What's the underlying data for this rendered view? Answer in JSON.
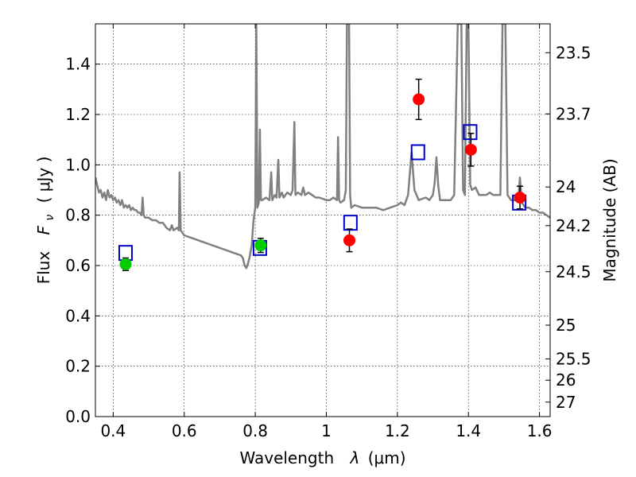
{
  "chart_data": {
    "type": "scatter",
    "xlabel_text": "Wavelength",
    "xlabel_symbol": "λ",
    "xlabel_unit": "(μm)",
    "ylabel_text": "Flux",
    "ylabel_symbol": "F",
    "ylabel_subscript": "ν",
    "ylabel_unit": "( μJy )",
    "y2label": "Magnitude (AB)",
    "xlim": [
      0.35,
      1.63
    ],
    "ylim": [
      0.0,
      1.56
    ],
    "grid": true,
    "x_ticks": [
      0.4,
      0.6,
      0.8,
      1.0,
      1.2,
      1.4,
      1.6
    ],
    "x_tick_labels": [
      "0.4",
      "0.6",
      "0.8",
      "1",
      "1.2",
      "1.4",
      "1.6"
    ],
    "y_ticks": [
      0.0,
      0.2,
      0.4,
      0.6,
      0.8,
      1.0,
      1.2,
      1.4
    ],
    "y_tick_labels": [
      "0.0",
      "0.2",
      "0.4",
      "0.6",
      "0.8",
      "1.0",
      "1.2",
      "1.4"
    ],
    "y2_ticks": [
      {
        "label": "23.5",
        "flux": 1.4454
      },
      {
        "label": "23.7",
        "flux": 1.2023
      },
      {
        "label": "24",
        "flux": 0.912
      },
      {
        "label": "24.2",
        "flux": 0.7586
      },
      {
        "label": "24.5",
        "flux": 0.5754
      },
      {
        "label": "25",
        "flux": 0.3631
      },
      {
        "label": "25.5",
        "flux": 0.2291
      },
      {
        "label": "26",
        "flux": 0.1445
      },
      {
        "label": "27",
        "flux": 0.0575
      }
    ],
    "series": [
      {
        "kind": "line",
        "color": "#808080",
        "points": [
          [
            0.35,
            0.95
          ],
          [
            0.355,
            0.92
          ],
          [
            0.36,
            0.89
          ],
          [
            0.365,
            0.9
          ],
          [
            0.37,
            0.87
          ],
          [
            0.375,
            0.89
          ],
          [
            0.38,
            0.86
          ],
          [
            0.385,
            0.9
          ],
          [
            0.39,
            0.87
          ],
          [
            0.395,
            0.88
          ],
          [
            0.4,
            0.86
          ],
          [
            0.405,
            0.87
          ],
          [
            0.41,
            0.85
          ],
          [
            0.415,
            0.86
          ],
          [
            0.42,
            0.84
          ],
          [
            0.425,
            0.86
          ],
          [
            0.43,
            0.83
          ],
          [
            0.435,
            0.84
          ],
          [
            0.44,
            0.83
          ],
          [
            0.445,
            0.84
          ],
          [
            0.45,
            0.82
          ],
          [
            0.455,
            0.83
          ],
          [
            0.46,
            0.82
          ],
          [
            0.465,
            0.82
          ],
          [
            0.47,
            0.81
          ],
          [
            0.475,
            0.81
          ],
          [
            0.48,
            0.8
          ],
          [
            0.483,
            0.87
          ],
          [
            0.486,
            0.8
          ],
          [
            0.49,
            0.79
          ],
          [
            0.5,
            0.79
          ],
          [
            0.51,
            0.78
          ],
          [
            0.52,
            0.78
          ],
          [
            0.53,
            0.77
          ],
          [
            0.54,
            0.77
          ],
          [
            0.55,
            0.75
          ],
          [
            0.56,
            0.74
          ],
          [
            0.565,
            0.76
          ],
          [
            0.57,
            0.74
          ],
          [
            0.58,
            0.75
          ],
          [
            0.585,
            0.74
          ],
          [
            0.587,
            0.97
          ],
          [
            0.59,
            0.74
          ],
          [
            0.6,
            0.72
          ],
          [
            0.62,
            0.71
          ],
          [
            0.64,
            0.7
          ],
          [
            0.66,
            0.69
          ],
          [
            0.68,
            0.68
          ],
          [
            0.7,
            0.67
          ],
          [
            0.72,
            0.66
          ],
          [
            0.74,
            0.65
          ],
          [
            0.76,
            0.64
          ],
          [
            0.765,
            0.63
          ],
          [
            0.77,
            0.6
          ],
          [
            0.775,
            0.59
          ],
          [
            0.78,
            0.61
          ],
          [
            0.785,
            0.64
          ],
          [
            0.79,
            0.68
          ],
          [
            0.795,
            0.78
          ],
          [
            0.8,
            0.83
          ],
          [
            0.803,
            1.56
          ],
          [
            0.806,
            0.83
          ],
          [
            0.81,
            0.85
          ],
          [
            0.813,
            1.14
          ],
          [
            0.816,
            0.86
          ],
          [
            0.82,
            0.86
          ],
          [
            0.83,
            0.87
          ],
          [
            0.84,
            0.86
          ],
          [
            0.845,
            0.97
          ],
          [
            0.848,
            0.86
          ],
          [
            0.855,
            0.88
          ],
          [
            0.86,
            0.87
          ],
          [
            0.865,
            1.02
          ],
          [
            0.868,
            0.87
          ],
          [
            0.875,
            0.89
          ],
          [
            0.88,
            0.87
          ],
          [
            0.89,
            0.89
          ],
          [
            0.9,
            0.88
          ],
          [
            0.905,
            0.9
          ],
          [
            0.91,
            1.17
          ],
          [
            0.913,
            0.88
          ],
          [
            0.92,
            0.89
          ],
          [
            0.93,
            0.88
          ],
          [
            0.935,
            0.91
          ],
          [
            0.94,
            0.88
          ],
          [
            0.95,
            0.89
          ],
          [
            0.96,
            0.88
          ],
          [
            0.97,
            0.87
          ],
          [
            0.98,
            0.87
          ],
          [
            1.0,
            0.86
          ],
          [
            1.01,
            0.86
          ],
          [
            1.02,
            0.87
          ],
          [
            1.03,
            0.86
          ],
          [
            1.033,
            1.11
          ],
          [
            1.036,
            0.86
          ],
          [
            1.04,
            0.85
          ],
          [
            1.05,
            0.86
          ],
          [
            1.055,
            0.9
          ],
          [
            1.058,
            1.56
          ],
          [
            1.064,
            1.56
          ],
          [
            1.067,
            0.88
          ],
          [
            1.07,
            0.83
          ],
          [
            1.08,
            0.84
          ],
          [
            1.1,
            0.83
          ],
          [
            1.12,
            0.83
          ],
          [
            1.14,
            0.83
          ],
          [
            1.16,
            0.82
          ],
          [
            1.18,
            0.83
          ],
          [
            1.2,
            0.84
          ],
          [
            1.21,
            0.85
          ],
          [
            1.22,
            0.84
          ],
          [
            1.23,
            0.88
          ],
          [
            1.24,
            1.05
          ],
          [
            1.248,
            0.9
          ],
          [
            1.26,
            0.86
          ],
          [
            1.28,
            0.87
          ],
          [
            1.29,
            0.86
          ],
          [
            1.3,
            0.88
          ],
          [
            1.305,
            0.93
          ],
          [
            1.31,
            1.03
          ],
          [
            1.315,
            0.92
          ],
          [
            1.32,
            0.86
          ],
          [
            1.33,
            0.86
          ],
          [
            1.34,
            0.86
          ],
          [
            1.35,
            0.86
          ],
          [
            1.36,
            0.88
          ],
          [
            1.37,
            1.56
          ],
          [
            1.38,
            1.56
          ],
          [
            1.385,
            0.9
          ],
          [
            1.39,
            0.88
          ],
          [
            1.395,
            1.56
          ],
          [
            1.4,
            1.56
          ],
          [
            1.405,
            0.92
          ],
          [
            1.41,
            0.9
          ],
          [
            1.42,
            0.91
          ],
          [
            1.43,
            0.88
          ],
          [
            1.44,
            0.88
          ],
          [
            1.45,
            0.88
          ],
          [
            1.46,
            0.89
          ],
          [
            1.47,
            0.88
          ],
          [
            1.48,
            0.88
          ],
          [
            1.49,
            0.88
          ],
          [
            1.496,
            1.56
          ],
          [
            1.504,
            1.56
          ],
          [
            1.51,
            0.88
          ],
          [
            1.52,
            0.86
          ],
          [
            1.53,
            0.86
          ],
          [
            1.54,
            0.86
          ],
          [
            1.545,
            0.95
          ],
          [
            1.55,
            0.85
          ],
          [
            1.56,
            0.83
          ],
          [
            1.57,
            0.83
          ],
          [
            1.58,
            0.82
          ],
          [
            1.59,
            0.82
          ],
          [
            1.6,
            0.81
          ],
          [
            1.61,
            0.81
          ],
          [
            1.62,
            0.8
          ],
          [
            1.63,
            0.79
          ]
        ]
      },
      {
        "kind": "square",
        "color": "#0000cc",
        "points": [
          [
            0.435,
            0.65
          ],
          [
            0.813,
            0.67
          ],
          [
            1.068,
            0.77
          ],
          [
            1.258,
            1.05
          ],
          [
            1.405,
            1.13
          ],
          [
            1.543,
            0.85
          ]
        ]
      },
      {
        "kind": "circle",
        "color": "#00cc00",
        "points": [
          {
            "x": 0.435,
            "y": 0.605,
            "err": 0.025
          },
          {
            "x": 0.815,
            "y": 0.68,
            "err": 0.028
          }
        ]
      },
      {
        "kind": "circle",
        "color": "#ff0000",
        "points": [
          {
            "x": 1.065,
            "y": 0.7,
            "err": 0.045
          },
          {
            "x": 1.26,
            "y": 1.26,
            "err": 0.08
          },
          {
            "x": 1.407,
            "y": 1.06,
            "err": 0.065
          },
          {
            "x": 1.545,
            "y": 0.87,
            "err": 0.045
          }
        ]
      }
    ]
  }
}
